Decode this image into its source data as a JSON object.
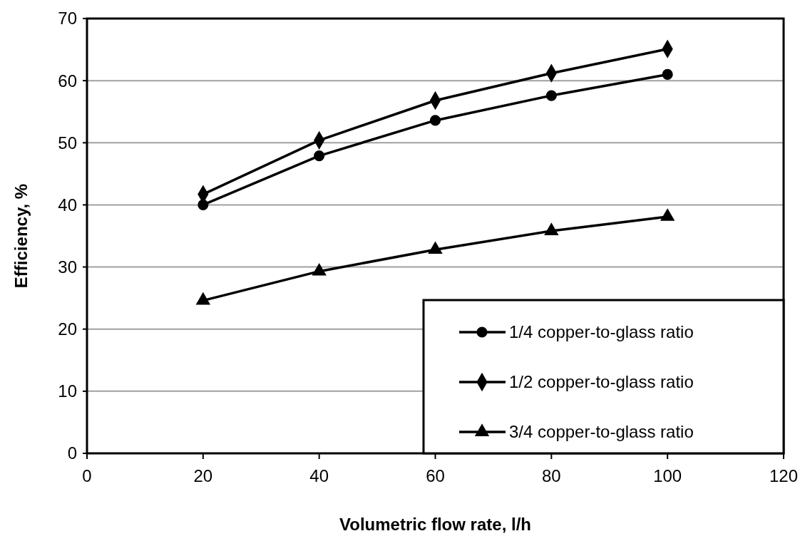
{
  "chart_data": {
    "type": "line",
    "xlabel": "Volumetric flow rate, l/h",
    "ylabel": "Efficiency, %",
    "x": [
      20,
      40,
      60,
      80,
      100
    ],
    "xlim": [
      0,
      120
    ],
    "xticks": [
      0,
      20,
      40,
      60,
      80,
      100,
      120
    ],
    "ylim": [
      0,
      70
    ],
    "yticks": [
      0,
      10,
      20,
      30,
      40,
      50,
      60,
      70
    ],
    "grid": "y",
    "legend": "bottom right",
    "series": [
      {
        "name": "1/4 copper-to-glass ratio",
        "color": "#000000",
        "marker": "circle",
        "values": [
          40,
          47.9,
          53.6,
          57.6,
          61
        ]
      },
      {
        "name": "1/2 copper-to-glass ratio",
        "color": "#000000",
        "marker": "diamond",
        "values": [
          41.7,
          50.4,
          56.8,
          61.2,
          65.1
        ]
      },
      {
        "name": "3/4 copper-to-glass ratio",
        "color": "#000000",
        "marker": "triangle",
        "values": [
          24.6,
          29.3,
          32.8,
          35.8,
          38.1
        ]
      }
    ]
  }
}
